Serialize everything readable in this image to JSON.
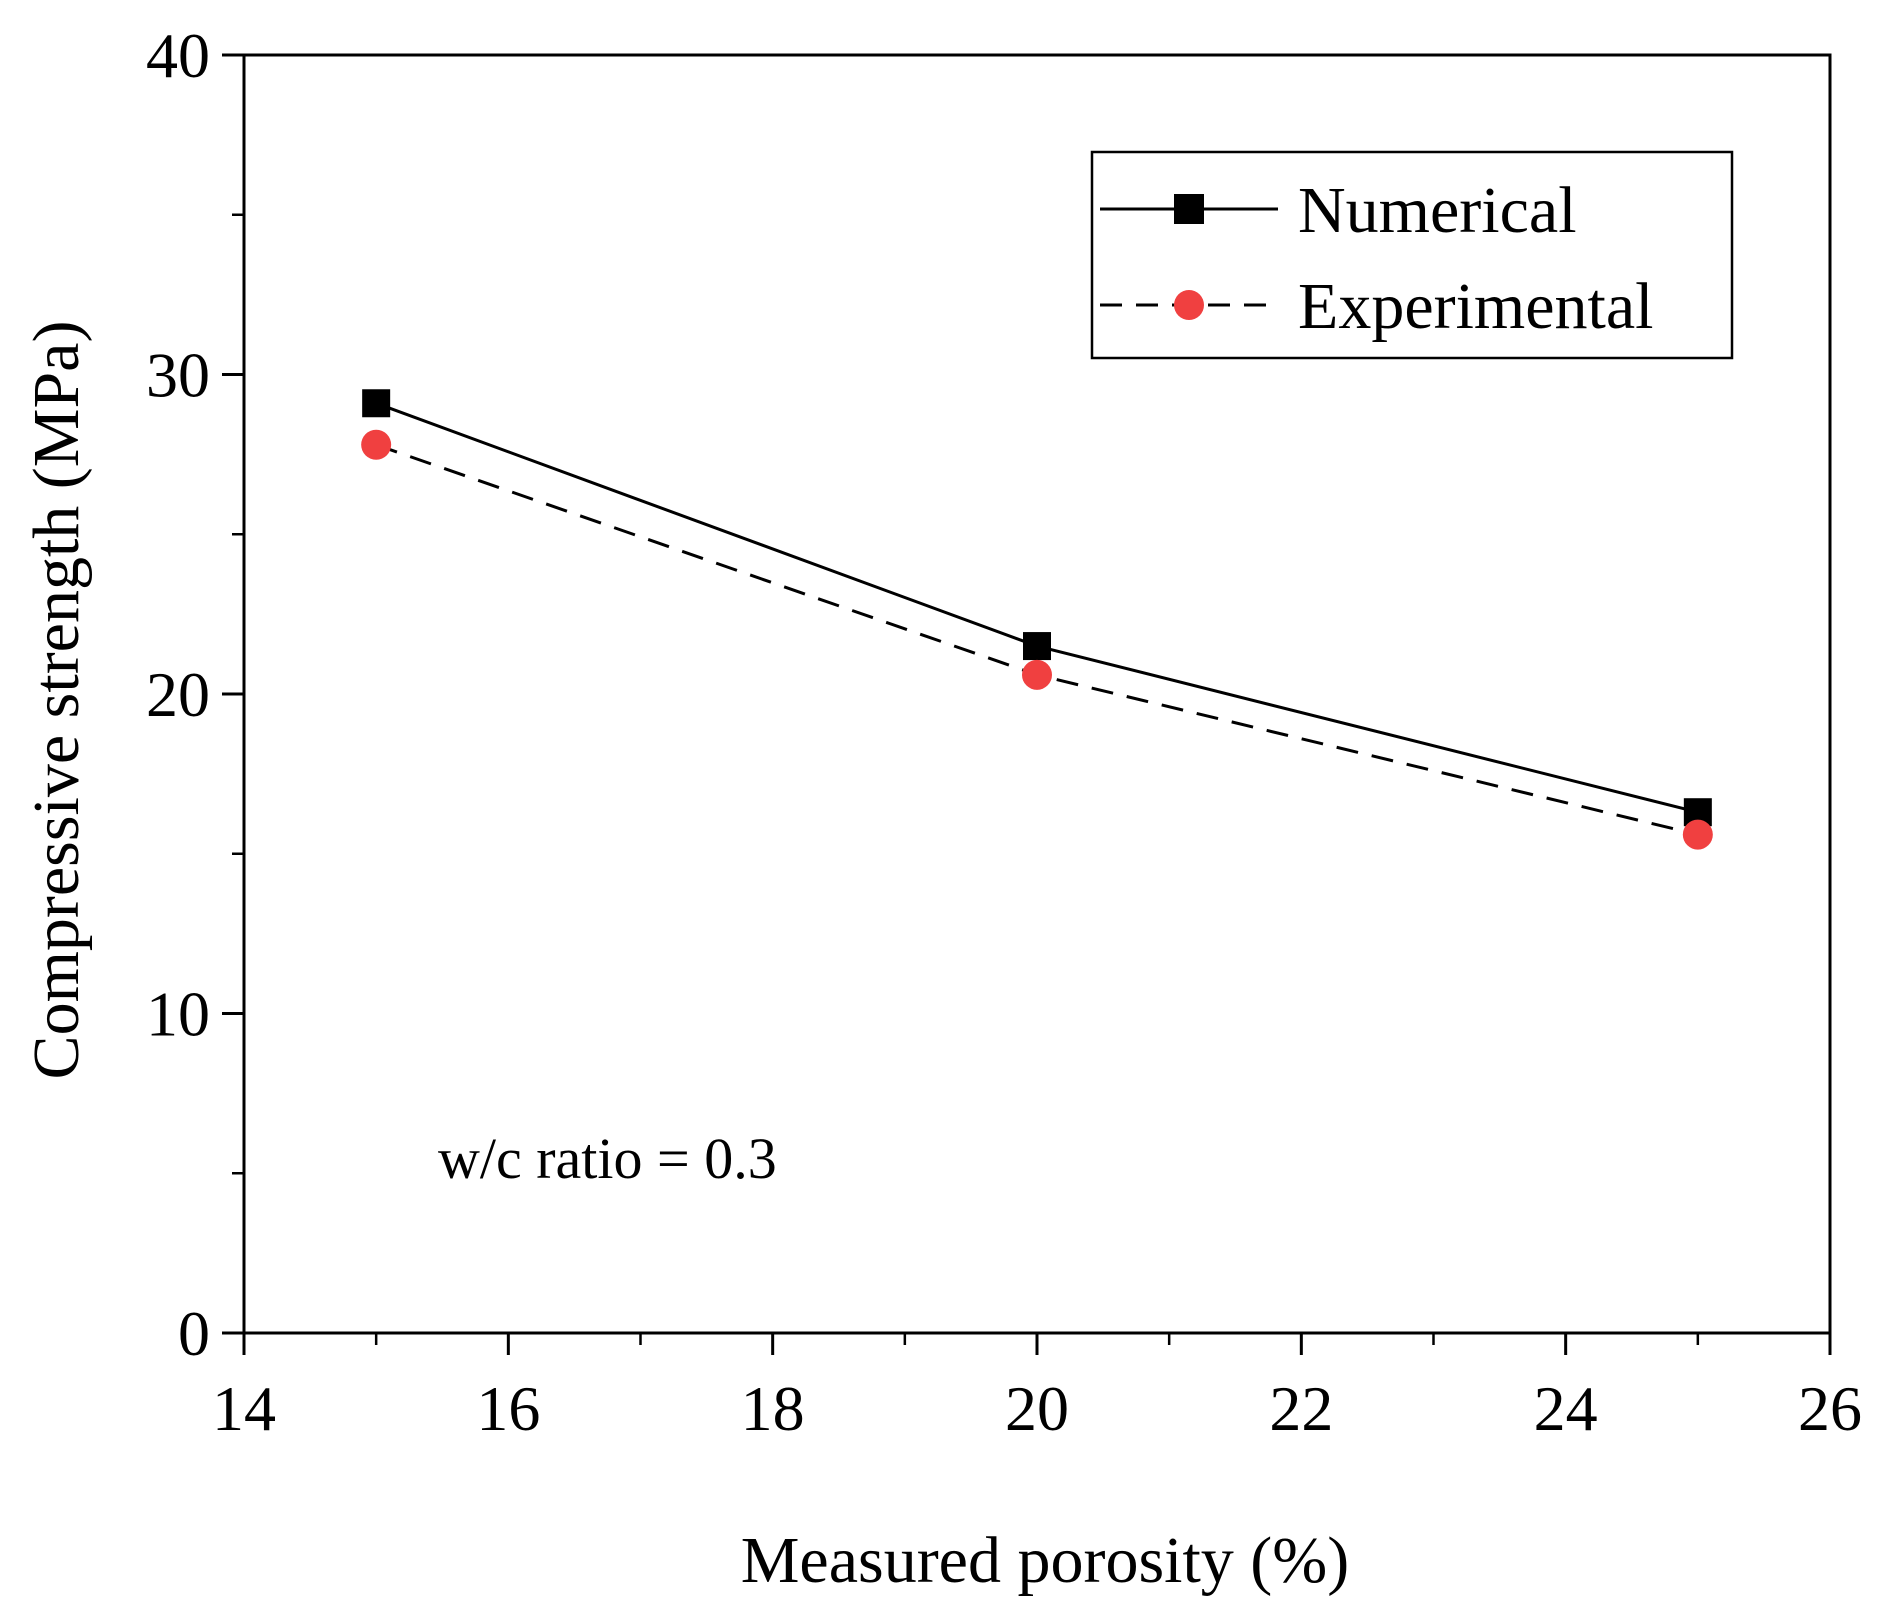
{
  "chart_data": {
    "type": "line",
    "title": "",
    "xlabel": "Measured porosity (%)",
    "ylabel": "Compressive strength (MPa)",
    "xlim": [
      14,
      26
    ],
    "ylim": [
      0,
      40
    ],
    "x_ticks": [
      14,
      16,
      18,
      20,
      22,
      24,
      26
    ],
    "y_ticks": [
      0,
      10,
      20,
      30,
      40
    ],
    "x_tick_labels": [
      "14",
      "16",
      "18",
      "20",
      "22",
      "24",
      "26"
    ],
    "y_tick_labels": [
      "0",
      "10",
      "20",
      "30",
      "40"
    ],
    "grid": false,
    "legend_position": "top-right",
    "annotation": "w/c ratio = 0.3",
    "x": [
      15,
      20,
      25
    ],
    "series": [
      {
        "name": "Numerical",
        "values": [
          29.1,
          21.5,
          16.3
        ],
        "color": "#000000",
        "marker": "square",
        "line_style": "solid"
      },
      {
        "name": "Experimental",
        "values": [
          27.8,
          20.6,
          15.6
        ],
        "color": "#f04040",
        "marker": "circle",
        "line_style": "dashed"
      }
    ]
  }
}
